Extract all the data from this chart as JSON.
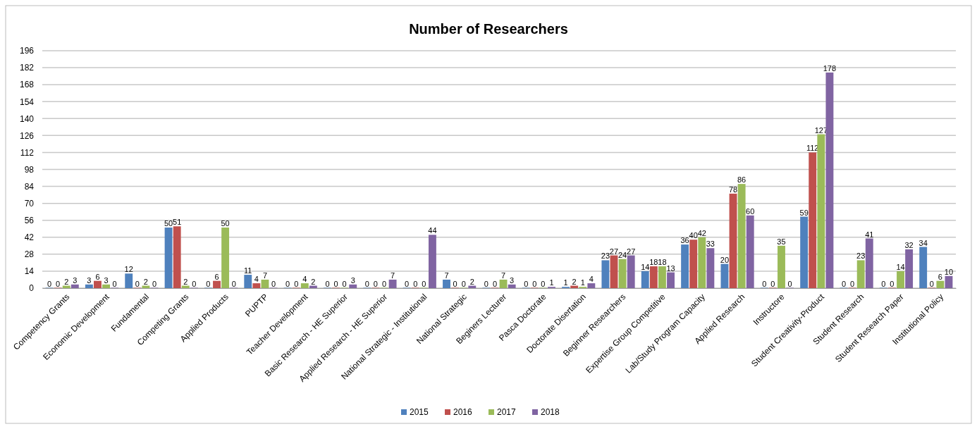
{
  "chart_data": {
    "type": "bar",
    "title": "Number of Researchers",
    "categories": [
      "Competency Grants",
      "Economic Development",
      "Fundamental",
      "Competing Grants",
      "Applied Products",
      "PUPTP",
      "Teacher Development",
      "Basic Research - HE Superior",
      "Applied Research - HE Superior",
      "National Strategic - Institutional",
      "National Strategic",
      "Beginers Lecturer",
      "Pasca Doctorate",
      "Doctorate Disertation",
      "Beginner Researchers",
      "Expertise Group Competitive",
      "Lab/Study Program Capacity",
      "Applied Research",
      "Instructore",
      "Student Creativity-Product",
      "Student Research",
      "Student Research Paper",
      "Institutional Policy"
    ],
    "series": [
      {
        "name": "2015",
        "color": "#4f81bd",
        "values": [
          0,
          3,
          12,
          50,
          0,
          11,
          0,
          0,
          0,
          0,
          7,
          0,
          0,
          1,
          23,
          14,
          36,
          20,
          0,
          59,
          0,
          0,
          34
        ]
      },
      {
        "name": "2016",
        "color": "#c0504d",
        "values": [
          0,
          6,
          0,
          51,
          6,
          4,
          0,
          0,
          0,
          0,
          0,
          0,
          0,
          2,
          27,
          18,
          40,
          78,
          0,
          112,
          0,
          0,
          0
        ]
      },
      {
        "name": "2017",
        "color": "#9bbb59",
        "values": [
          2,
          3,
          2,
          2,
          50,
          7,
          4,
          0,
          0,
          0,
          0,
          7,
          0,
          1,
          24,
          18,
          42,
          86,
          35,
          127,
          23,
          14,
          6
        ]
      },
      {
        "name": "2018",
        "color": "#8064a2",
        "values": [
          3,
          0,
          0,
          0,
          0,
          0,
          2,
          3,
          7,
          44,
          2,
          3,
          1,
          4,
          27,
          13,
          33,
          60,
          0,
          178,
          41,
          32,
          10
        ]
      }
    ],
    "ylim": [
      0,
      196
    ],
    "yticks": [
      0,
      14,
      28,
      42,
      56,
      70,
      84,
      98,
      112,
      126,
      140,
      154,
      168,
      182,
      196
    ],
    "grid": "y",
    "legend": "bottom",
    "data_labels": true
  }
}
